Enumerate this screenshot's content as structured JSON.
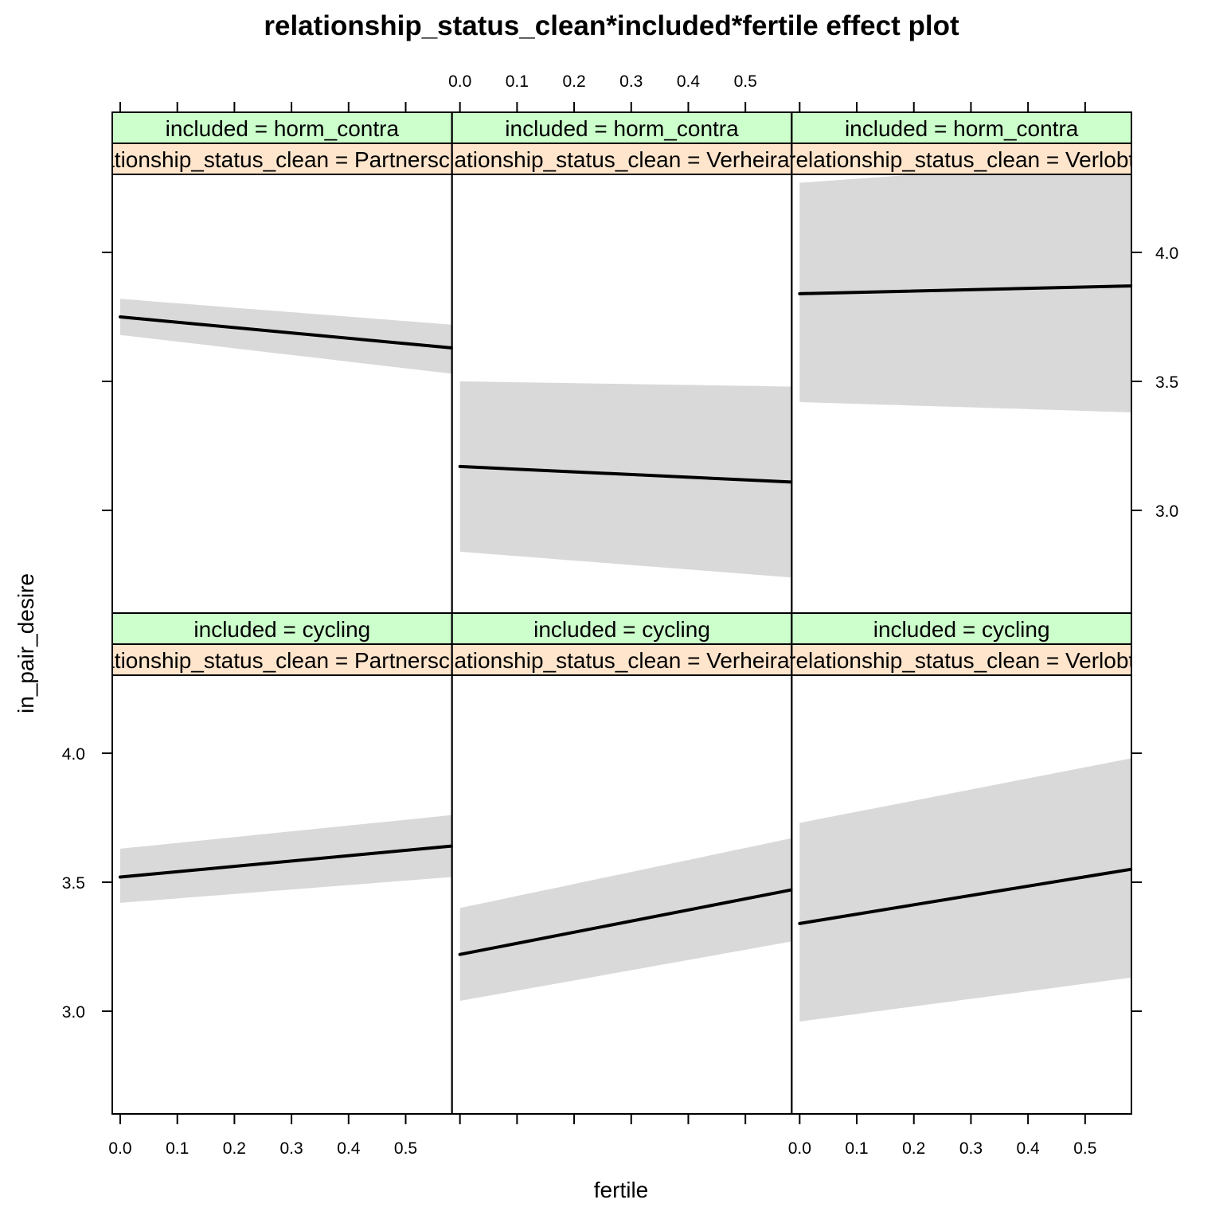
{
  "chart_data": {
    "type": "line",
    "title": "relationship_status_clean*included*fertile effect plot",
    "xlabel": "fertile",
    "ylabel": "in_pair_desire",
    "xlim": [
      0.0,
      0.6
    ],
    "ylim": [
      2.7,
      4.4
    ],
    "x_ticks": [
      "0.0",
      "0.1",
      "0.2",
      "0.3",
      "0.4",
      "0.5"
    ],
    "y_ticks": [
      "3.0",
      "3.5",
      "4.0"
    ],
    "colors": {
      "band": "#d9d9d9",
      "line": "#000000",
      "strip_included": "#ccffcc",
      "strip_relationship": "#ffe5cc"
    },
    "panels": [
      {
        "row": "top",
        "col": 0,
        "included": "included = horm_contra",
        "relationship": "relationship_status_clean = Partnerschaft",
        "x": [
          0.0,
          0.58
        ],
        "y": [
          3.75,
          3.63
        ],
        "lower": [
          3.68,
          3.53
        ],
        "upper": [
          3.82,
          3.72
        ]
      },
      {
        "row": "top",
        "col": 1,
        "included": "included = horm_contra",
        "relationship": "relationship_status_clean = Verheiratet",
        "x": [
          0.0,
          0.58
        ],
        "y": [
          3.17,
          3.11
        ],
        "lower": [
          2.84,
          2.74
        ],
        "upper": [
          3.5,
          3.48
        ]
      },
      {
        "row": "top",
        "col": 2,
        "included": "included = horm_contra",
        "relationship": "relationship_status_clean = Verlobt",
        "x": [
          0.0,
          0.58
        ],
        "y": [
          3.84,
          3.87
        ],
        "lower": [
          3.42,
          3.38
        ],
        "upper": [
          4.27,
          4.36
        ]
      },
      {
        "row": "bottom",
        "col": 0,
        "included": "included = cycling",
        "relationship": "relationship_status_clean = Partnerschaft",
        "x": [
          0.0,
          0.58
        ],
        "y": [
          3.52,
          3.64
        ],
        "lower": [
          3.42,
          3.52
        ],
        "upper": [
          3.63,
          3.76
        ]
      },
      {
        "row": "bottom",
        "col": 1,
        "included": "included = cycling",
        "relationship": "relationship_status_clean = Verheiratet",
        "x": [
          0.0,
          0.58
        ],
        "y": [
          3.22,
          3.47
        ],
        "lower": [
          3.04,
          3.27
        ],
        "upper": [
          3.4,
          3.67
        ]
      },
      {
        "row": "bottom",
        "col": 2,
        "included": "included = cycling",
        "relationship": "relationship_status_clean = Verlobt",
        "x": [
          0.0,
          0.58
        ],
        "y": [
          3.34,
          3.55
        ],
        "lower": [
          2.96,
          3.13
        ],
        "upper": [
          3.73,
          3.98
        ]
      }
    ]
  }
}
